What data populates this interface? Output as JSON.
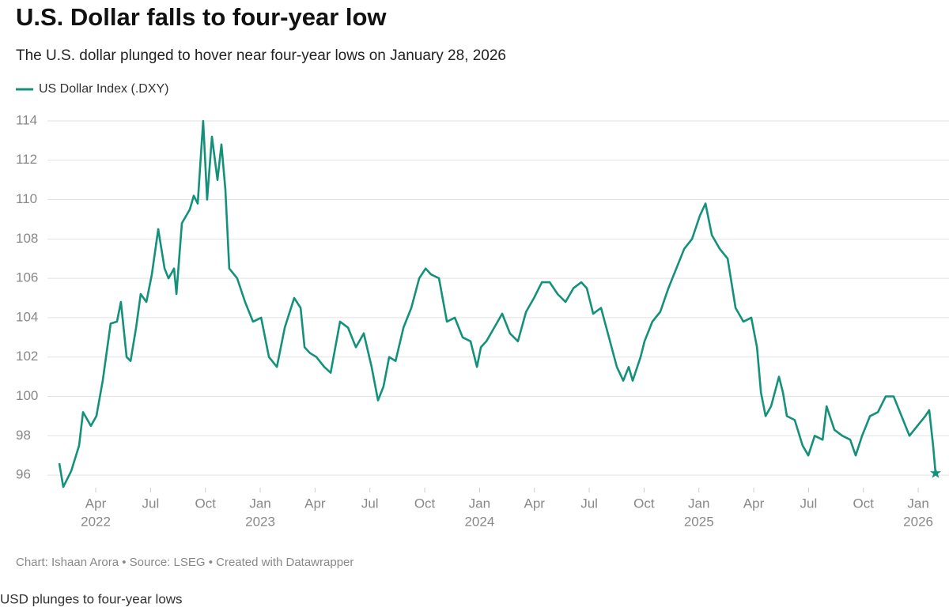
{
  "chart_data": {
    "type": "line",
    "title": "U.S. Dollar falls to four-year low",
    "subtitle": "The U.S. dollar plunged to hover near four-year lows on January 28, 2026",
    "source": "Chart: Ishaan Arora • Source: LSEG • Created with Datawrapper",
    "caption": "USD plunges to four-year lows",
    "grid": true,
    "xlim": [
      2022.084,
      2026.079
    ],
    "ylim": [
      95.2,
      114.3
    ],
    "yticks": [
      96,
      98,
      100,
      102,
      104,
      106,
      108,
      110,
      112,
      114
    ],
    "xticks": [
      {
        "value": 2022.25,
        "label": "Apr",
        "year": "2022"
      },
      {
        "value": 2022.5,
        "label": "Jul"
      },
      {
        "value": 2022.75,
        "label": "Oct"
      },
      {
        "value": 2023.0,
        "label": "Jan",
        "year": "2023"
      },
      {
        "value": 2023.25,
        "label": "Apr"
      },
      {
        "value": 2023.5,
        "label": "Jul"
      },
      {
        "value": 2023.75,
        "label": "Oct"
      },
      {
        "value": 2024.0,
        "label": "Jan",
        "year": "2024"
      },
      {
        "value": 2024.25,
        "label": "Apr"
      },
      {
        "value": 2024.5,
        "label": "Jul"
      },
      {
        "value": 2024.75,
        "label": "Oct"
      },
      {
        "value": 2025.0,
        "label": "Jan",
        "year": "2025"
      },
      {
        "value": 2025.25,
        "label": "Apr"
      },
      {
        "value": 2025.5,
        "label": "Jul"
      },
      {
        "value": 2025.75,
        "label": "Oct"
      },
      {
        "value": 2026.0,
        "label": "Jan",
        "year": "2026"
      }
    ],
    "x": [
      2022.084,
      2022.102,
      2022.138,
      2022.174,
      2022.192,
      2022.228,
      2022.253,
      2022.282,
      2022.318,
      2022.347,
      2022.365,
      2022.391,
      2022.409,
      2022.434,
      2022.455,
      2022.481,
      2022.506,
      2022.535,
      2022.564,
      2022.582,
      2022.607,
      2022.618,
      2022.643,
      2022.679,
      2022.697,
      2022.715,
      2022.74,
      2022.758,
      2022.78,
      2022.805,
      2022.823,
      2022.841,
      2022.859,
      2022.895,
      2022.931,
      2022.967,
      2023.004,
      2023.04,
      2023.076,
      2023.112,
      2023.155,
      2023.184,
      2023.202,
      2023.227,
      2023.256,
      2023.292,
      2023.321,
      2023.364,
      2023.4,
      2023.436,
      2023.472,
      2023.508,
      2023.537,
      2023.562,
      2023.588,
      2023.617,
      2023.653,
      2023.689,
      2023.725,
      2023.754,
      2023.779,
      2023.815,
      2023.851,
      2023.887,
      2023.923,
      2023.959,
      2023.988,
      2024.006,
      2024.031,
      2024.067,
      2024.103,
      2024.139,
      2024.175,
      2024.212,
      2024.248,
      2024.284,
      2024.32,
      2024.356,
      2024.392,
      2024.428,
      2024.464,
      2024.489,
      2024.518,
      2024.554,
      2024.59,
      2024.626,
      2024.655,
      2024.68,
      2024.698,
      2024.734,
      2024.752,
      2024.788,
      2024.824,
      2024.861,
      2024.897,
      2024.933,
      2024.969,
      2025.005,
      2025.03,
      2025.059,
      2025.095,
      2025.131,
      2025.167,
      2025.203,
      2025.239,
      2025.265,
      2025.283,
      2025.304,
      2025.329,
      2025.365,
      2025.383,
      2025.401,
      2025.437,
      2025.473,
      2025.499,
      2025.528,
      2025.564,
      2025.582,
      2025.618,
      2025.654,
      2025.69,
      2025.715,
      2025.744,
      2025.78,
      2025.816,
      2025.852,
      2025.888,
      2025.924,
      2025.96,
      2025.996,
      2026.032,
      2026.05,
      2026.068,
      2026.079
    ],
    "series": [
      {
        "name": "US Dollar Index (.DXY)",
        "color": "#14917a",
        "values": [
          96.6,
          95.4,
          96.2,
          97.5,
          99.2,
          98.5,
          99.0,
          100.8,
          103.7,
          103.8,
          104.8,
          102.0,
          101.8,
          103.5,
          105.2,
          104.8,
          106.2,
          108.5,
          106.5,
          106.0,
          106.5,
          105.2,
          108.8,
          109.5,
          110.2,
          109.8,
          114.0,
          110.0,
          113.2,
          111.0,
          112.8,
          110.5,
          106.5,
          106.0,
          104.8,
          103.8,
          104.0,
          102.0,
          101.5,
          103.5,
          105.0,
          104.5,
          102.5,
          102.2,
          102.0,
          101.5,
          101.2,
          103.8,
          103.5,
          102.5,
          103.2,
          101.5,
          99.8,
          100.5,
          102.0,
          101.8,
          103.5,
          104.5,
          106.0,
          106.5,
          106.2,
          106.0,
          103.8,
          104.0,
          103.0,
          102.8,
          101.5,
          102.5,
          102.8,
          103.5,
          104.2,
          103.2,
          102.8,
          104.3,
          105.0,
          105.8,
          105.8,
          105.2,
          104.8,
          105.5,
          105.8,
          105.5,
          104.2,
          104.5,
          103.0,
          101.5,
          100.8,
          101.5,
          100.8,
          102.0,
          102.8,
          103.8,
          104.3,
          105.5,
          106.5,
          107.5,
          108.0,
          109.2,
          109.8,
          108.2,
          107.5,
          107.0,
          104.5,
          103.8,
          104.0,
          102.5,
          100.2,
          99.0,
          99.5,
          101.0,
          100.2,
          99.0,
          98.8,
          97.5,
          97.0,
          98.0,
          97.8,
          99.5,
          98.3,
          98.0,
          97.8,
          97.0,
          98.0,
          99.0,
          99.2,
          100.0,
          100.0,
          99.0,
          98.0,
          98.5,
          99.0,
          99.3,
          97.5,
          96.1
        ]
      }
    ]
  }
}
